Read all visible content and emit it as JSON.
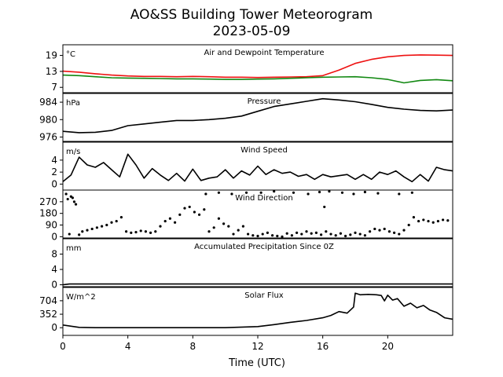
{
  "figure": {
    "title": "AO&SS Building Tower Meteorogram",
    "subtitle": "2023-05-09",
    "xlabel": "Time (UTC)",
    "xticks": [
      "0",
      "4",
      "8",
      "12",
      "16",
      "20"
    ],
    "colors": {
      "temperature": "#ee1111",
      "dewpoint": "#118811",
      "black": "#000000"
    }
  },
  "chart_data": [
    {
      "type": "line",
      "panel": "temperature",
      "title": "Air and Dewpoint Temperature",
      "ylabel": "°C",
      "yticks": [
        "7",
        "13",
        "19"
      ],
      "ylim": [
        5,
        23
      ],
      "xlim": [
        0,
        24
      ],
      "series": [
        {
          "color": "#ee1111",
          "x": [
            0,
            1,
            2,
            3,
            4,
            5,
            6,
            7,
            8,
            9,
            10,
            11,
            12,
            13,
            14,
            15,
            16,
            17,
            18,
            19,
            20,
            21,
            22,
            23,
            24
          ],
          "y": [
            13.1,
            12.7,
            12.1,
            11.6,
            11.3,
            11.1,
            11.1,
            11.0,
            11.1,
            11.0,
            10.8,
            10.8,
            10.7,
            10.8,
            10.9,
            11.0,
            11.4,
            13.5,
            16.0,
            17.5,
            18.5,
            19.0,
            19.2,
            19.1,
            19.0
          ]
        },
        {
          "color": "#118811",
          "x": [
            0,
            1,
            2,
            3,
            4,
            5,
            6,
            7,
            8,
            9,
            10,
            11,
            12,
            13,
            14,
            15,
            16,
            17,
            18,
            19,
            20,
            21,
            22,
            23,
            24
          ],
          "y": [
            11.6,
            11.4,
            11.0,
            10.6,
            10.5,
            10.4,
            10.3,
            10.2,
            10.2,
            10.1,
            10.0,
            10.0,
            10.1,
            10.2,
            10.4,
            10.6,
            10.8,
            10.9,
            11.0,
            10.6,
            10.0,
            8.7,
            9.6,
            9.9,
            9.5
          ]
        }
      ]
    },
    {
      "type": "line",
      "panel": "pressure",
      "title": "Pressure",
      "ylabel": "hPa",
      "yticks": [
        "976",
        "980",
        "984"
      ],
      "ylim": [
        975,
        986
      ],
      "xlim": [
        0,
        24
      ],
      "series": [
        {
          "color": "#000000",
          "x": [
            0,
            1,
            2,
            3,
            4,
            5,
            6,
            7,
            8,
            9,
            10,
            11,
            12,
            13,
            14,
            15,
            16,
            17,
            18,
            19,
            20,
            21,
            22,
            23,
            24
          ],
          "y": [
            977.3,
            977.0,
            977.1,
            977.5,
            978.6,
            979.0,
            979.4,
            979.8,
            979.8,
            980.0,
            980.3,
            980.8,
            981.9,
            983.0,
            983.6,
            984.2,
            984.8,
            984.5,
            984.1,
            983.5,
            982.8,
            982.4,
            982.1,
            982.0,
            982.2
          ]
        }
      ]
    },
    {
      "type": "line",
      "panel": "wind-speed",
      "title": "Wind Speed",
      "ylabel": "m/s",
      "yticks": [
        "0",
        "2",
        "4"
      ],
      "ylim": [
        -1,
        7
      ],
      "xlim": [
        0,
        24
      ],
      "series": [
        {
          "color": "#000000",
          "x": [
            0,
            0.5,
            1,
            1.5,
            2,
            2.5,
            3,
            3.5,
            4,
            4.5,
            5,
            5.5,
            6,
            6.5,
            7,
            7.5,
            8,
            8.5,
            9,
            9.5,
            10,
            10.5,
            11,
            11.5,
            12,
            12.5,
            13,
            13.5,
            14,
            14.5,
            15,
            15.5,
            16,
            16.5,
            17,
            17.5,
            18,
            18.5,
            19,
            19.5,
            20,
            20.5,
            21,
            21.5,
            22,
            22.5,
            23,
            23.5,
            24
          ],
          "y": [
            0.4,
            1.5,
            4.5,
            3.2,
            2.8,
            3.6,
            2.4,
            1.2,
            5.0,
            3.2,
            1.0,
            2.6,
            1.5,
            0.6,
            1.8,
            0.5,
            2.5,
            0.6,
            1.0,
            1.2,
            2.4,
            1.0,
            2.2,
            1.5,
            3.0,
            1.6,
            2.4,
            1.8,
            2.0,
            1.3,
            1.6,
            0.8,
            1.6,
            1.2,
            1.4,
            1.6,
            0.8,
            1.6,
            0.8,
            2.0,
            1.6,
            2.2,
            1.2,
            0.4,
            1.6,
            0.5,
            2.8,
            2.4,
            2.2
          ]
        }
      ]
    },
    {
      "type": "scatter",
      "panel": "wind-direction",
      "title": "Wind Direction",
      "ylabel": "",
      "yticks": [
        "0",
        "90",
        "180",
        "270"
      ],
      "ylim": [
        -10,
        360
      ],
      "xlim": [
        0,
        24
      ],
      "series": [
        {
          "color": "#000000",
          "x": [
            0.2,
            0.4,
            0.6,
            0.8,
            1.0,
            1.2,
            1.5,
            1.8,
            2.1,
            2.4,
            2.7,
            3.0,
            3.3,
            3.6,
            3.9,
            4.2,
            4.5,
            4.8,
            5.1,
            5.4,
            5.7,
            6.0,
            6.3,
            6.6,
            6.9,
            7.2,
            7.5,
            7.8,
            8.1,
            8.4,
            8.7,
            9.0,
            9.3,
            9.6,
            9.9,
            10.2,
            10.5,
            10.8,
            11.1,
            11.4,
            11.7,
            12.0,
            12.3,
            12.6,
            12.9,
            13.2,
            13.5,
            13.8,
            14.1,
            14.4,
            14.7,
            15.0,
            15.3,
            15.6,
            15.9,
            16.2,
            16.5,
            16.8,
            17.1,
            17.4,
            17.7,
            18.0,
            18.3,
            18.6,
            18.9,
            19.2,
            19.5,
            19.8,
            20.1,
            20.4,
            20.7,
            21.0,
            21.3,
            21.6,
            21.9,
            22.2,
            22.5,
            22.8,
            23.1,
            23.4,
            23.7,
            0.3,
            0.5,
            0.7,
            8.8,
            9.6,
            10.4,
            11.3,
            12.2,
            13.0,
            14.2,
            15.1,
            15.8,
            16.4,
            17.2,
            17.9,
            18.6,
            19.4,
            20.7,
            21.5,
            16.1
          ],
          "y": [
            330,
            20,
            300,
            250,
            15,
            40,
            50,
            60,
            70,
            80,
            90,
            110,
            120,
            150,
            40,
            30,
            35,
            45,
            40,
            30,
            40,
            80,
            120,
            140,
            110,
            170,
            220,
            230,
            190,
            170,
            210,
            40,
            70,
            140,
            100,
            80,
            20,
            50,
            80,
            20,
            10,
            5,
            20,
            30,
            10,
            5,
            0,
            25,
            10,
            30,
            20,
            40,
            25,
            30,
            15,
            40,
            20,
            10,
            25,
            5,
            15,
            30,
            20,
            10,
            40,
            60,
            50,
            60,
            40,
            30,
            20,
            50,
            90,
            150,
            120,
            130,
            120,
            110,
            120,
            130,
            125,
            290,
            310,
            270,
            330,
            340,
            330,
            340,
            340,
            350,
            340,
            330,
            345,
            350,
            340,
            330,
            345,
            335,
            330,
            340,
            230
          ]
        }
      ]
    },
    {
      "type": "line",
      "panel": "precipitation",
      "title": "Accumulated Precipitation Since 0Z",
      "ylabel": "mm",
      "yticks": [
        "0",
        "4",
        "8"
      ],
      "ylim": [
        -0.5,
        12
      ],
      "xlim": [
        0,
        24
      ],
      "series": [
        {
          "color": "#000000",
          "x": [
            0,
            0.4,
            24
          ],
          "y": [
            0,
            0.2,
            0.2
          ]
        }
      ]
    },
    {
      "type": "line",
      "panel": "solar-flux",
      "title": "Solar Flux",
      "ylabel": "W/m^2",
      "yticks": [
        "0",
        "352",
        "704"
      ],
      "ylim": [
        -200,
        1050
      ],
      "xlim": [
        0,
        24
      ],
      "series": [
        {
          "color": "#000000",
          "x": [
            0,
            1,
            2,
            4,
            6,
            8,
            10,
            12,
            13,
            14,
            15,
            16,
            16.5,
            17,
            17.5,
            17.9,
            18.0,
            18.3,
            18.8,
            19.3,
            19.6,
            19.8,
            20.0,
            20.3,
            20.6,
            21.0,
            21.4,
            21.8,
            22.2,
            22.6,
            23.0,
            23.5,
            24
          ],
          "y": [
            70,
            10,
            0,
            0,
            0,
            0,
            0,
            30,
            80,
            140,
            190,
            260,
            320,
            420,
            380,
            540,
            900,
            860,
            870,
            860,
            840,
            700,
            850,
            720,
            760,
            560,
            640,
            520,
            580,
            460,
            400,
            260,
            220
          ]
        }
      ]
    }
  ]
}
